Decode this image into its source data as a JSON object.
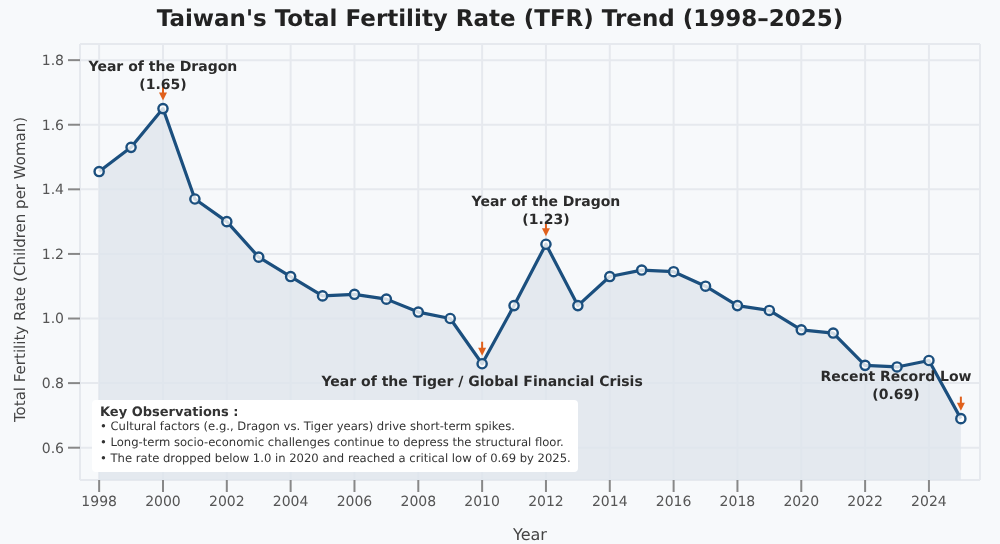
{
  "chart_data": {
    "type": "area",
    "title": "Taiwan's Total Fertility Rate (TFR) Trend (1998–2025)",
    "xlabel": "Year",
    "ylabel": "Total Fertility Rate (Children per Woman)",
    "x": [
      1998,
      1999,
      2000,
      2001,
      2002,
      2003,
      2004,
      2005,
      2006,
      2007,
      2008,
      2009,
      2010,
      2011,
      2012,
      2013,
      2014,
      2015,
      2016,
      2017,
      2018,
      2019,
      2020,
      2021,
      2022,
      2023,
      2024,
      2025
    ],
    "series": [
      {
        "color": "#1b4f7e",
        "values": [
          1.455,
          1.53,
          1.65,
          1.37,
          1.3,
          1.19,
          1.13,
          1.07,
          1.075,
          1.06,
          1.02,
          1.0,
          0.86,
          1.04,
          1.23,
          1.04,
          1.13,
          1.15,
          1.145,
          1.1,
          1.04,
          1.025,
          0.965,
          0.955,
          0.855,
          0.85,
          0.87,
          0.69
        ]
      }
    ],
    "xlim": [
      1997.4,
      2025.6
    ],
    "xticks": [
      1998,
      2000,
      2002,
      2004,
      2006,
      2008,
      2010,
      2012,
      2014,
      2016,
      2018,
      2020,
      2022,
      2024
    ],
    "ylim": [
      0.5,
      1.85
    ],
    "yticks": [
      {
        "value": 0.6,
        "label": "0.6"
      },
      {
        "value": 0.8,
        "label": "0.8"
      },
      {
        "value": 1.0,
        "label": "1.0"
      },
      {
        "value": 1.2,
        "label": "1.2"
      },
      {
        "value": 1.4,
        "label": "1.4"
      },
      {
        "value": 1.6,
        "label": "1.6"
      },
      {
        "value": 1.8,
        "label": "1.8"
      }
    ],
    "grid": true,
    "marker": "circle",
    "annotations": [
      {
        "text": "Year of the Dragon\n(1.65)",
        "x": 2000,
        "y": 1.65
      },
      {
        "text": "Year of the Tiger / Global Financial Crisis",
        "x": 2010,
        "y": 0.86
      },
      {
        "text": "Year of the Dragon\n(1.23)",
        "x": 2012,
        "y": 1.23
      },
      {
        "text": "Recent Record Low\n(0.69)",
        "x": 2025,
        "y": 0.69
      },
      "Key Observations :",
      "• Cultural factors (e.g., Dragon vs. Tiger years) drive short-term spikes.",
      "• Long-term socio-economic challenges continue to depress the structural floor.",
      "• The rate dropped below 1.0 in 2020 and reached a critical low of 0.69 by 2025."
    ]
  }
}
